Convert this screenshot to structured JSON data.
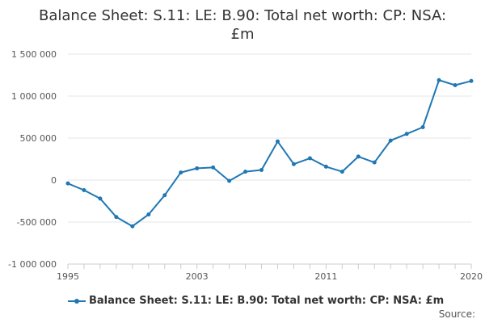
{
  "chart_data": {
    "type": "line",
    "title": "Balance Sheet: S.11: LE: B.90: Total net worth: CP: NSA: £m",
    "xlabel": "",
    "ylabel": "",
    "xlim": [
      1995,
      2020
    ],
    "ylim": [
      -1000000,
      1500000
    ],
    "x_ticks": [
      1995,
      2003,
      2011,
      2020
    ],
    "x_tick_labels": [
      "1995",
      "2003",
      "2011",
      "2020"
    ],
    "y_ticks": [
      -1000000,
      -500000,
      0,
      500000,
      1000000,
      1500000
    ],
    "y_tick_labels": [
      "-1 000 000",
      "-500 000",
      "0",
      "500 000",
      "1 000 000",
      "1 500 000"
    ],
    "grid": true,
    "legend_position": "bottom",
    "x": [
      1995,
      1996,
      1997,
      1998,
      1999,
      2000,
      2001,
      2002,
      2003,
      2004,
      2005,
      2006,
      2007,
      2008,
      2009,
      2010,
      2011,
      2012,
      2013,
      2014,
      2015,
      2016,
      2017,
      2018,
      2019,
      2020
    ],
    "series": [
      {
        "name": "Balance Sheet: S.11: LE: B.90: Total net worth: CP: NSA: £m",
        "color": "#1f77b4",
        "values": [
          -40000,
          -120000,
          -220000,
          -440000,
          -550000,
          -410000,
          -180000,
          90000,
          140000,
          150000,
          -10000,
          100000,
          120000,
          460000,
          190000,
          260000,
          160000,
          100000,
          280000,
          210000,
          470000,
          550000,
          630000,
          1190000,
          1130000,
          1180000
        ]
      }
    ]
  },
  "source_label": "Source:"
}
